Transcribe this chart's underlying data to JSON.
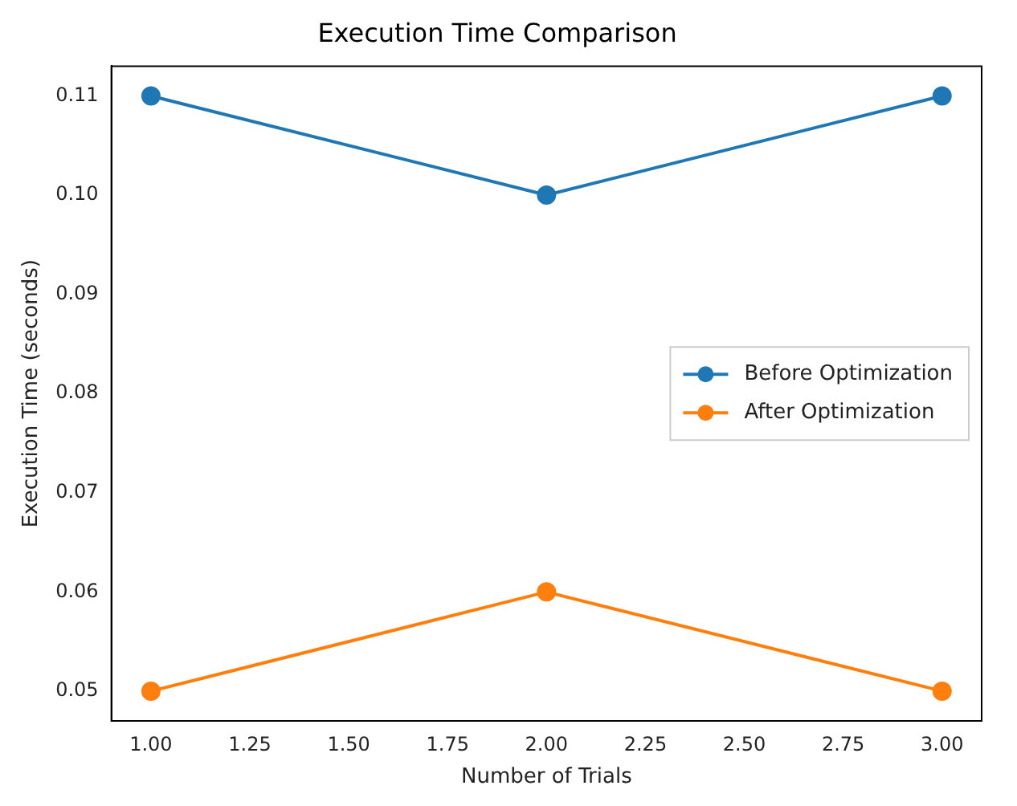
{
  "chart_data": {
    "type": "line",
    "title": "Execution Time Comparison",
    "xlabel": "Number of Trials",
    "ylabel": "Execution Time (seconds)",
    "x": [
      1,
      2,
      3
    ],
    "series": [
      {
        "name": "Before Optimization",
        "color": "#1f77b4",
        "values": [
          0.11,
          0.1,
          0.11
        ]
      },
      {
        "name": "After Optimization",
        "color": "#ff7f0e",
        "values": [
          0.05,
          0.06,
          0.05
        ]
      }
    ],
    "xlim": [
      0.9,
      3.1
    ],
    "xticks": [
      {
        "value": 1,
        "label": "1.00"
      },
      {
        "value": 1.25,
        "label": "1.25"
      },
      {
        "value": 1.5,
        "label": "1.50"
      },
      {
        "value": 1.75,
        "label": "1.75"
      },
      {
        "value": 2,
        "label": "2.00"
      },
      {
        "value": 2.25,
        "label": "2.25"
      },
      {
        "value": 2.5,
        "label": "2.50"
      },
      {
        "value": 2.75,
        "label": "2.75"
      },
      {
        "value": 3,
        "label": "3.00"
      }
    ],
    "ylim": [
      0.047,
      0.113
    ],
    "yticks": [
      0.05,
      0.06,
      0.07,
      0.08,
      0.09,
      {
        "value": 0.1,
        "label": "0.10"
      },
      0.11
    ],
    "grid": false,
    "legend": "right",
    "marker": "circle",
    "line_style": "solid"
  }
}
